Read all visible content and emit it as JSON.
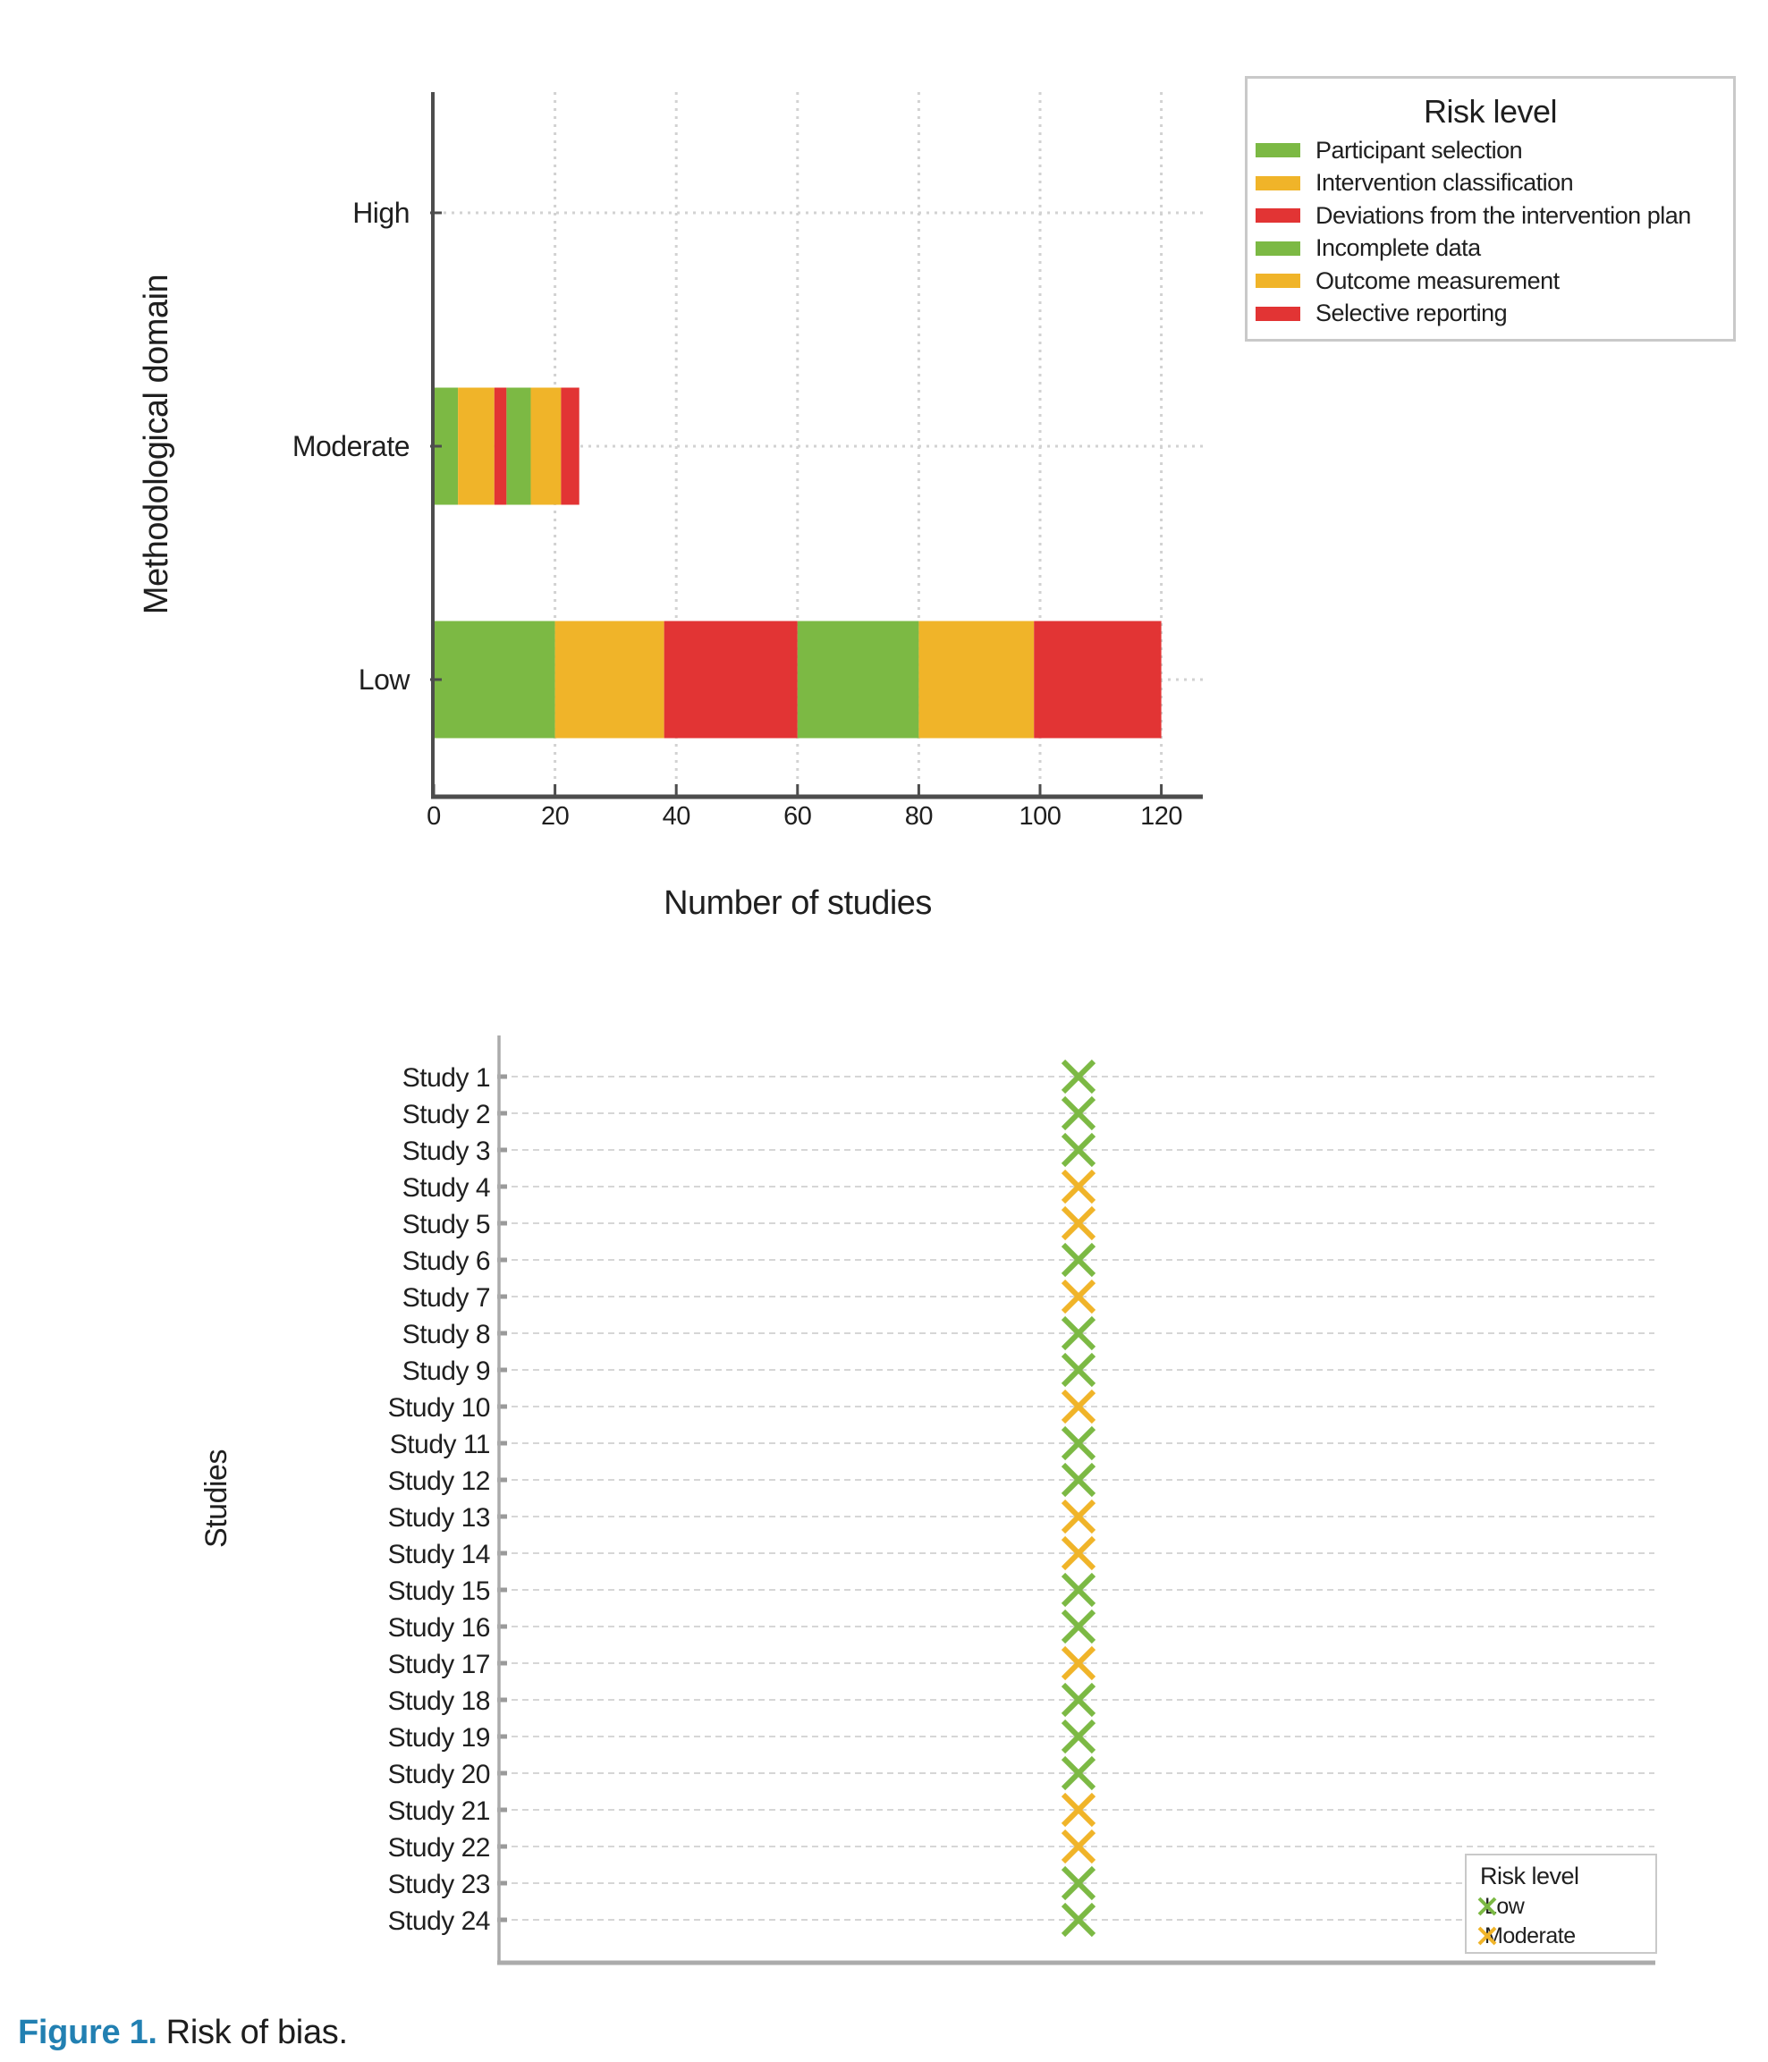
{
  "figure": {
    "caption_label": "Figure 1.",
    "caption_text": "Risk of bias."
  },
  "colors": {
    "green": "#7cb944",
    "amber": "#f0b429",
    "red": "#e23434",
    "caption_blue": "#2280b2",
    "axis_dark": "#4d4d4d",
    "axis_light": "#ababab",
    "grid": "#d2d2d2"
  },
  "chart_data": [
    {
      "type": "bar",
      "orientation": "horizontal",
      "stacked": true,
      "title": "",
      "xlabel": "Number of studies",
      "ylabel": "Methodological domain",
      "categories": [
        "High",
        "Moderate",
        "Low"
      ],
      "xticks": [
        0,
        20,
        40,
        60,
        80,
        100,
        120
      ],
      "xlim": [
        0,
        126
      ],
      "grid": true,
      "legend": {
        "title": "Risk level",
        "position": "top-right"
      },
      "series": [
        {
          "name": "Participant selection",
          "color": "#7cb944",
          "values": [
            0,
            4,
            20
          ]
        },
        {
          "name": "Intervention classification",
          "color": "#f0b429",
          "values": [
            0,
            6,
            18
          ]
        },
        {
          "name": "Deviations from the intervention plan",
          "color": "#e23434",
          "values": [
            0,
            2,
            22
          ]
        },
        {
          "name": "Incomplete data",
          "color": "#7cb944",
          "values": [
            0,
            4,
            20
          ]
        },
        {
          "name": "Outcome measurement",
          "color": "#f0b429",
          "values": [
            0,
            5,
            19
          ]
        },
        {
          "name": "Selective reporting",
          "color": "#e23434",
          "values": [
            0,
            3,
            21
          ]
        }
      ],
      "category_totals": {
        "High": 0,
        "Moderate": 24,
        "Low": 120
      }
    },
    {
      "type": "scatter",
      "marker": "x",
      "title": "",
      "xlabel": "",
      "ylabel": "Studies",
      "grid": true,
      "legend": {
        "title": "Risk level",
        "position": "bottom-right",
        "items": [
          {
            "label": "Low",
            "color": "#7cb944"
          },
          {
            "label": "Moderate",
            "color": "#f0b429"
          }
        ]
      },
      "points": [
        {
          "label": "Study 1",
          "risk": "Low"
        },
        {
          "label": "Study 2",
          "risk": "Low"
        },
        {
          "label": "Study 3",
          "risk": "Low"
        },
        {
          "label": "Study 4",
          "risk": "Moderate"
        },
        {
          "label": "Study 5",
          "risk": "Moderate"
        },
        {
          "label": "Study 6",
          "risk": "Low"
        },
        {
          "label": "Study 7",
          "risk": "Moderate"
        },
        {
          "label": "Study 8",
          "risk": "Low"
        },
        {
          "label": "Study 9",
          "risk": "Low"
        },
        {
          "label": "Study 10",
          "risk": "Moderate"
        },
        {
          "label": "Study 11",
          "risk": "Low"
        },
        {
          "label": "Study 12",
          "risk": "Low"
        },
        {
          "label": "Study 13",
          "risk": "Moderate"
        },
        {
          "label": "Study 14",
          "risk": "Moderate"
        },
        {
          "label": "Study 15",
          "risk": "Low"
        },
        {
          "label": "Study 16",
          "risk": "Low"
        },
        {
          "label": "Study 17",
          "risk": "Moderate"
        },
        {
          "label": "Study 18",
          "risk": "Low"
        },
        {
          "label": "Study 19",
          "risk": "Low"
        },
        {
          "label": "Study 20",
          "risk": "Low"
        },
        {
          "label": "Study 21",
          "risk": "Moderate"
        },
        {
          "label": "Study 22",
          "risk": "Moderate"
        },
        {
          "label": "Study 23",
          "risk": "Low"
        },
        {
          "label": "Study 24",
          "risk": "Low"
        }
      ]
    }
  ]
}
